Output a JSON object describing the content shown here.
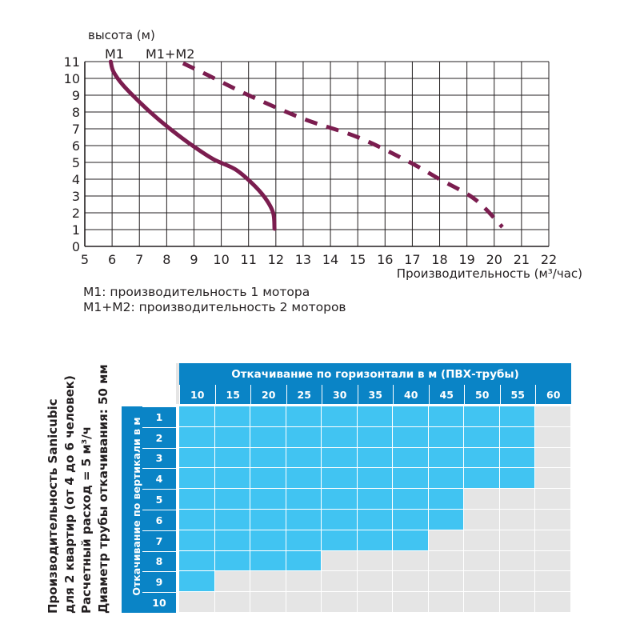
{
  "chart_data": {
    "type": "line",
    "ylabel": "высота (м)",
    "xlabel": "Производительность (м³/час)",
    "xlim": [
      5,
      22
    ],
    "ylim": [
      0,
      11
    ],
    "x_ticks": [
      5,
      6,
      7,
      8,
      9,
      10,
      11,
      12,
      13,
      14,
      15,
      16,
      17,
      18,
      19,
      20,
      21,
      22
    ],
    "y_ticks": [
      0,
      1,
      2,
      3,
      4,
      5,
      6,
      7,
      8,
      9,
      10,
      11
    ],
    "grid": true,
    "series": [
      {
        "name": "M1",
        "style": "solid",
        "color": "#7b1d4f",
        "points": [
          [
            5.95,
            11
          ],
          [
            6.05,
            10.4
          ],
          [
            6.4,
            9.6
          ],
          [
            7.0,
            8.6
          ],
          [
            7.6,
            7.7
          ],
          [
            8.2,
            6.9
          ],
          [
            8.9,
            6.05
          ],
          [
            9.7,
            5.2
          ],
          [
            10.5,
            4.6
          ],
          [
            11.1,
            3.8
          ],
          [
            11.6,
            2.9
          ],
          [
            11.9,
            2.0
          ],
          [
            11.95,
            1.05
          ]
        ]
      },
      {
        "name": "M1+M2",
        "style": "dashed",
        "color": "#7b1d4f",
        "points": [
          [
            8.6,
            10.9
          ],
          [
            9.5,
            10.2
          ],
          [
            11,
            9.0
          ],
          [
            13,
            7.6
          ],
          [
            15,
            6.5
          ],
          [
            16.8,
            5.1
          ],
          [
            18,
            4.0
          ],
          [
            19.3,
            2.8
          ],
          [
            20.3,
            1.15
          ]
        ]
      }
    ],
    "series_labels": [
      "M1",
      "M1+M2"
    ]
  },
  "legend": {
    "line1": "M1: производительность 1 мотора",
    "line2": "M1+M2: производительность 2 моторов"
  },
  "table": {
    "side_lines": [
      "Производительность Sanicubic",
      "для 2 квартир (от 4 до 6 человек)",
      "Расчетный расход = 5 м³/ч",
      "Диаметр трубы откачивания: 50 мм"
    ],
    "horizontal_title": "Откачивание по горизонтали  в м  (ПВХ-трубы)",
    "vertical_title": "Откачивание по вертикали в м",
    "columns": [
      "10",
      "15",
      "20",
      "25",
      "30",
      "35",
      "40",
      "45",
      "50",
      "55",
      "60"
    ],
    "rows": [
      "1",
      "2",
      "3",
      "4",
      "5",
      "6",
      "7",
      "8",
      "9",
      "10"
    ],
    "filled_counts": [
      10,
      10,
      10,
      10,
      8,
      8,
      7,
      4,
      1,
      0
    ],
    "colors": {
      "header": "#0a84c6",
      "filled": "#41c4f2",
      "empty": "#e5e5e5"
    }
  }
}
